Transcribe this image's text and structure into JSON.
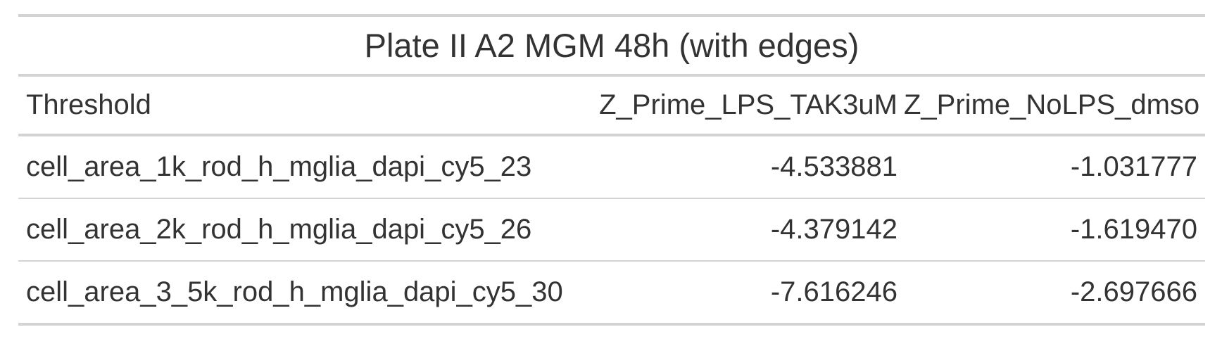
{
  "table": {
    "title": "Plate II A2 MGM 48h (with edges)",
    "columns": [
      "Threshold",
      "Z_Prime_LPS_TAK3uM",
      "Z_Prime_NoLPS_dmso"
    ],
    "rows": [
      [
        "cell_area_1k_rod_h_mglia_dapi_cy5_23",
        "-4.533881",
        "-1.031777"
      ],
      [
        "cell_area_2k_rod_h_mglia_dapi_cy5_26",
        "-4.379142",
        "-1.619470"
      ],
      [
        "cell_area_3_5k_rod_h_mglia_dapi_cy5_30",
        "-7.616246",
        "-2.697666"
      ]
    ]
  },
  "colors": {
    "text": "#333333",
    "border": "#d3d3d3",
    "background": "#ffffff"
  }
}
